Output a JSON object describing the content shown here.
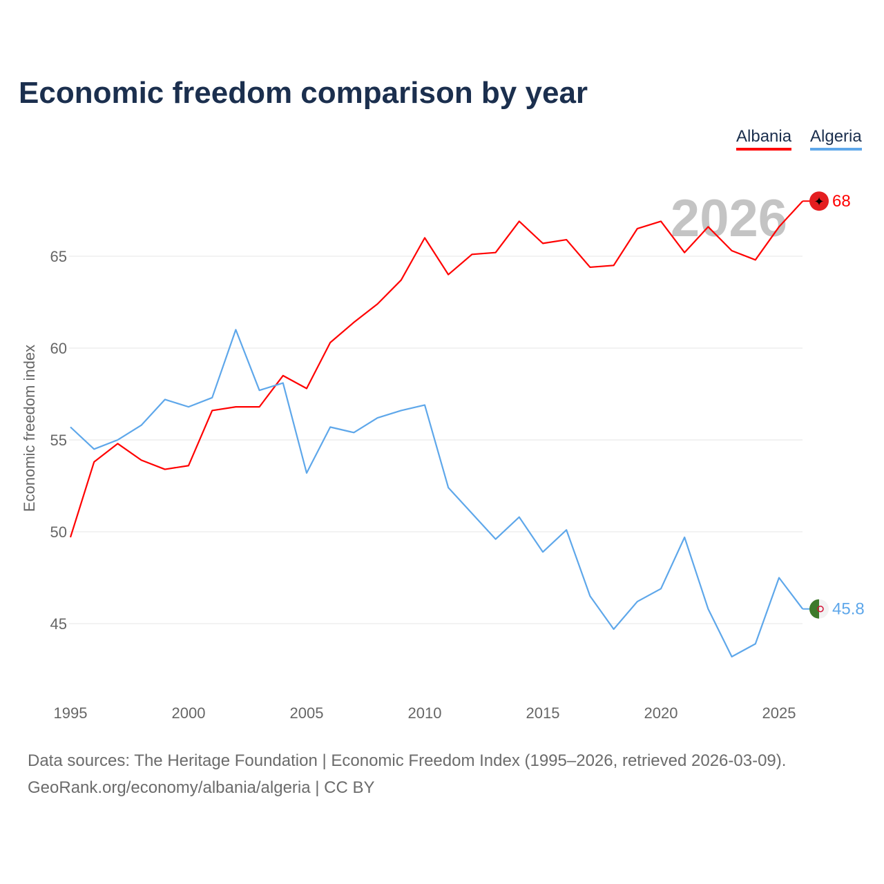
{
  "title": "Economic freedom comparison by year",
  "footer": {
    "sources": "Data sources: The Heritage Foundation | Economic Freedom Index (1995–2026, retrieved 2026-03-09).",
    "credit": "GeoRank.org/economy/albania/algeria | CC BY"
  },
  "chart_data": {
    "type": "line",
    "title": "Economic freedom comparison by year",
    "xlabel": "",
    "ylabel": "Economic freedom index",
    "current_year_label": "2026",
    "xlim": [
      1995,
      2026
    ],
    "ylim": [
      41.5,
      69.5
    ],
    "x_ticks": [
      1995,
      2000,
      2005,
      2010,
      2015,
      2020,
      2025
    ],
    "y_ticks": [
      45,
      50,
      55,
      60,
      65
    ],
    "grid": true,
    "legend_position": "top-right",
    "x": [
      1995,
      1996,
      1997,
      1998,
      1999,
      2000,
      2001,
      2002,
      2003,
      2004,
      2005,
      2006,
      2007,
      2008,
      2009,
      2010,
      2011,
      2012,
      2013,
      2014,
      2015,
      2016,
      2017,
      2018,
      2019,
      2020,
      2021,
      2022,
      2023,
      2024,
      2025,
      2026
    ],
    "series": [
      {
        "name": "Albania",
        "color": "#ff0000",
        "end_label": "68",
        "values": [
          49.7,
          53.8,
          54.8,
          53.9,
          53.4,
          53.6,
          56.6,
          56.8,
          56.8,
          58.5,
          57.8,
          60.3,
          61.4,
          62.4,
          63.7,
          66.0,
          64.0,
          65.1,
          65.2,
          66.9,
          65.7,
          65.9,
          64.4,
          64.5,
          66.5,
          66.9,
          65.2,
          66.6,
          65.3,
          64.8,
          66.6,
          68.0
        ]
      },
      {
        "name": "Algeria",
        "color": "#5ea7ea",
        "end_label": "45.8",
        "values": [
          55.7,
          54.5,
          55.0,
          55.8,
          57.2,
          56.8,
          57.3,
          61.0,
          57.7,
          58.1,
          53.2,
          55.7,
          55.4,
          56.2,
          56.6,
          56.9,
          52.4,
          51.0,
          49.6,
          50.8,
          48.9,
          50.1,
          46.5,
          44.7,
          46.2,
          46.9,
          49.7,
          45.8,
          43.2,
          43.9,
          47.5,
          45.8
        ]
      }
    ]
  }
}
